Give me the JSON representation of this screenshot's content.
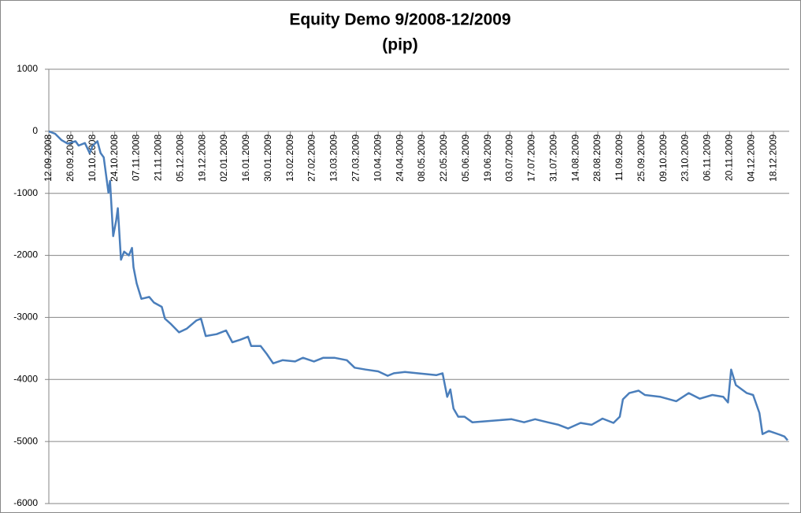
{
  "chart_data": {
    "type": "line",
    "title": "Equity Demo 9/2008-12/2009",
    "subtitle": "(pip)",
    "x": [
      "12.09.2008",
      "16.09.2008",
      "20.09.2008",
      "24.09.2008",
      "29.09.2008",
      "01.10.2008",
      "05.10.2008",
      "08.10.2008",
      "10.10.2008",
      "13.10.2008",
      "15.10.2008",
      "17.10.2008",
      "18.10.2008",
      "20.10.2008",
      "21.10.2008",
      "23.10.2008",
      "25.10.2008",
      "26.10.2008",
      "28.10.2008",
      "30.10.2008",
      "02.11.2008",
      "04.11.2008",
      "05.11.2008",
      "07.11.2008",
      "10.11.2008",
      "15.11.2008",
      "18.11.2008",
      "23.11.2008",
      "25.11.2008",
      "29.11.2008",
      "04.12.2008",
      "09.12.2008",
      "15.12.2008",
      "18.12.2008",
      "21.12.2008",
      "28.12.2008",
      "03.01.2009",
      "07.01.2009",
      "12.01.2009",
      "17.01.2009",
      "19.01.2009",
      "25.01.2009",
      "29.01.2009",
      "02.02.2009",
      "08.02.2009",
      "16.02.2009",
      "21.02.2009",
      "28.02.2009",
      "06.03.2009",
      "13.03.2009",
      "21.03.2009",
      "26.03.2009",
      "02.04.2009",
      "10.04.2009",
      "16.04.2009",
      "20.04.2009",
      "27.04.2009",
      "05.05.2009",
      "17.05.2009",
      "21.05.2009",
      "24.05.2009",
      "26.05.2009",
      "28.05.2009",
      "31.05.2009",
      "04.06.2009",
      "09.06.2009",
      "04.07.2009",
      "12.07.2009",
      "19.07.2009",
      "27.07.2009",
      "03.08.2009",
      "09.08.2009",
      "17.08.2009",
      "24.08.2009",
      "31.08.2009",
      "07.09.2009",
      "11.09.2009",
      "13.09.2009",
      "17.09.2009",
      "23.09.2009",
      "27.09.2009",
      "07.10.2009",
      "17.10.2009",
      "25.10.2009",
      "01.11.2009",
      "09.11.2009",
      "16.11.2009",
      "19.11.2009",
      "21.11.2009",
      "24.11.2009",
      "01.12.2009",
      "05.12.2009",
      "09.12.2009",
      "11.12.2009",
      "15.12.2009",
      "22.12.2009",
      "25.12.2009",
      "27.12.2009"
    ],
    "values": [
      0,
      -40,
      -140,
      -200,
      -160,
      -230,
      -190,
      -350,
      -230,
      -160,
      -350,
      -420,
      -610,
      -990,
      -800,
      -1690,
      -1430,
      -1240,
      -2070,
      -1940,
      -2000,
      -1880,
      -2190,
      -2450,
      -2700,
      -2670,
      -2760,
      -2830,
      -3020,
      -3110,
      -3240,
      -3180,
      -3050,
      -3020,
      -3300,
      -3270,
      -3210,
      -3400,
      -3360,
      -3310,
      -3460,
      -3460,
      -3590,
      -3740,
      -3690,
      -3710,
      -3650,
      -3710,
      -3650,
      -3650,
      -3690,
      -3810,
      -3840,
      -3870,
      -3940,
      -3900,
      -3880,
      -3900,
      -3930,
      -3900,
      -4280,
      -4160,
      -4470,
      -4600,
      -4600,
      -4690,
      -4640,
      -4690,
      -4640,
      -4690,
      -4730,
      -4790,
      -4700,
      -4730,
      -4630,
      -4700,
      -4600,
      -4320,
      -4220,
      -4180,
      -4250,
      -4280,
      -4350,
      -4220,
      -4310,
      -4250,
      -4280,
      -4370,
      -3840,
      -4090,
      -4220,
      -4250,
      -4540,
      -4880,
      -4830,
      -4890,
      -4920,
      -4980
    ],
    "color": "#4a7ebb",
    "xlim": [
      "12.09.2008",
      "28.12.2009"
    ],
    "xticks": [
      "12.09.2008",
      "26.09.2008",
      "10.10.2008",
      "24.10.2008",
      "07.11.2008",
      "21.11.2008",
      "05.12.2008",
      "19.12.2008",
      "02.01.2009",
      "16.01.2009",
      "30.01.2009",
      "13.02.2009",
      "27.02.2009",
      "13.03.2009",
      "27.03.2009",
      "10.04.2009",
      "24.04.2009",
      "08.05.2009",
      "22.05.2009",
      "05.06.2009",
      "19.06.2009",
      "03.07.2009",
      "17.07.2009",
      "31.07.2009",
      "14.08.2009",
      "28.08.2009",
      "11.09.2009",
      "25.09.2009",
      "09.10.2009",
      "23.10.2009",
      "06.11.2009",
      "20.11.2009",
      "04.12.2009",
      "18.12.2009"
    ],
    "ylim": [
      -6000,
      1000
    ],
    "yticks": [
      1000,
      0,
      -1000,
      -2000,
      -3000,
      -4000,
      -5000,
      -6000
    ],
    "grid": true
  }
}
